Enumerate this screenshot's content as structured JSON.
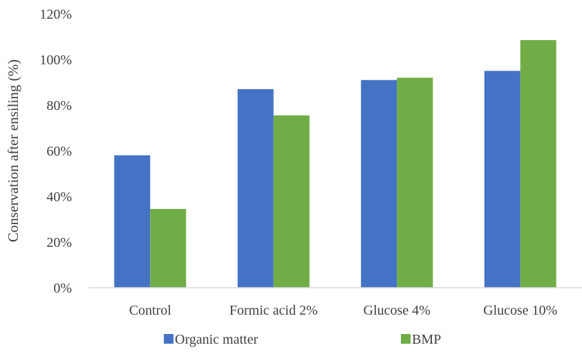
{
  "chart_data": {
    "type": "bar",
    "title": "",
    "xlabel": "",
    "ylabel": "Conservation after ensiling (%)",
    "categories": [
      "Control",
      "Formic acid 2%",
      "Glucose 4%",
      "Glucose 10%"
    ],
    "series": [
      {
        "name": "Organic matter",
        "color": "#4472C4",
        "values": [
          58,
          87,
          91,
          95
        ]
      },
      {
        "name": "BMP",
        "color": "#70AD47",
        "values": [
          34.5,
          75.5,
          92,
          108.5
        ]
      }
    ],
    "ylim": [
      0,
      120
    ],
    "yticks": [
      0,
      20,
      40,
      60,
      80,
      100,
      120
    ],
    "ytick_labels": [
      "0%",
      "20%",
      "40%",
      "60%",
      "80%",
      "100%",
      "120%"
    ],
    "grid": false,
    "legend": "bottom",
    "axis_color": "#D9D9D9",
    "text_color": "#404040"
  }
}
